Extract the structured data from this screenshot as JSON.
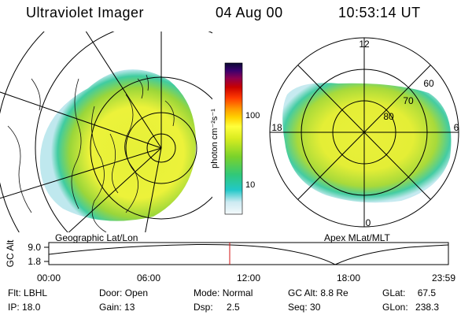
{
  "header": {
    "instrument": "Ultraviolet Imager",
    "date": "04 Aug 00",
    "time": "10:53:14 UT"
  },
  "colorbar": {
    "unit_label": "photon cm⁻²s⁻¹",
    "tick_100": "100",
    "tick_10": "10",
    "colors": [
      "#e8f4f8",
      "#9fd9e8",
      "#22c8c8",
      "#30c87a",
      "#7ad22b",
      "#c8e61e",
      "#ffff3c",
      "#ffd200",
      "#ff9600",
      "#ff3a00",
      "#c80000",
      "#8c0050",
      "#3a006e",
      "#0a0a32"
    ]
  },
  "geo_panel": {
    "label": "Geographic Lat/Lon"
  },
  "apex_panel": {
    "label": "Apex MLat/MLT",
    "mlt_12": "12",
    "mlt_18": "18",
    "mlt_6": "6",
    "mlt_0": "0",
    "lat_60": "60",
    "lat_70": "70",
    "lat_80": "80"
  },
  "altitude_plot": {
    "ylabel": "GC Alt",
    "y_top": "9.0",
    "y_bottom": "1.8",
    "x_ticks": [
      "00:00",
      "06:00",
      "12:00",
      "18:00",
      "23:59"
    ],
    "current_time_marker": "10:53:14"
  },
  "info": {
    "flt_label": "Flt:",
    "flt_value": "LBHL",
    "ip_label": "IP:",
    "ip_value": "18.0",
    "door_label": "Door:",
    "door_value": "Open",
    "gain_label": "Gain:",
    "gain_value": "13",
    "mode_label": "Mode:",
    "mode_value": "Normal",
    "dsp_label": "Dsp:",
    "dsp_value": "2.5",
    "gcalt_label": "GC Alt:",
    "gcalt_value": "8.8 Re",
    "seq_label": "Seq:",
    "seq_value": "30",
    "glat_label": "GLat:",
    "glat_value": "67.5",
    "glon_label": "GLon:",
    "glon_value": "238.3"
  }
}
